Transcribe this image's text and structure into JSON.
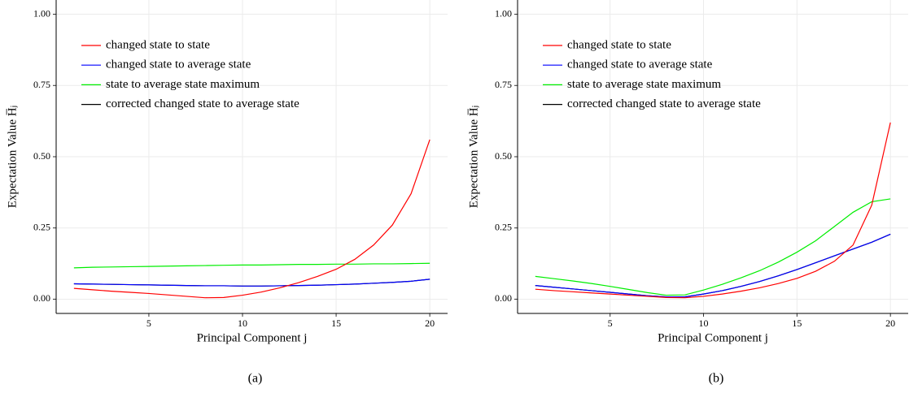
{
  "chart_data": [
    {
      "type": "line",
      "caption": "(a)",
      "xlabel": "Principal Component j",
      "ylabel": "Expectation Value H̅ⱼ",
      "x": [
        1,
        2,
        3,
        4,
        5,
        6,
        7,
        8,
        9,
        10,
        11,
        12,
        13,
        14,
        15,
        16,
        17,
        18,
        19,
        20
      ],
      "xlim": [
        0.05,
        20.95
      ],
      "xticks": [
        5,
        10,
        15,
        20
      ],
      "ylim": [
        -0.05,
        1.05
      ],
      "yticks": [
        {
          "value": 0,
          "label": "0.00"
        },
        {
          "value": 0.25,
          "label": "0.25"
        },
        {
          "value": 0.5,
          "label": "0.50"
        },
        {
          "value": 0.75,
          "label": "0.75"
        },
        {
          "value": 1,
          "label": "1.00"
        }
      ],
      "grid": true,
      "series": [
        {
          "name": "changed state to state",
          "color": "#ff0000",
          "values": [
            0.038,
            0.033,
            0.028,
            0.024,
            0.02,
            0.015,
            0.01,
            0.005,
            0.006,
            0.014,
            0.025,
            0.04,
            0.058,
            0.08,
            0.105,
            0.14,
            0.19,
            0.26,
            0.37,
            0.56
          ]
        },
        {
          "name": "changed state to average state",
          "color": "#0000ff",
          "values": [
            0.054,
            0.053,
            0.052,
            0.051,
            0.05,
            0.049,
            0.048,
            0.047,
            0.047,
            0.046,
            0.046,
            0.047,
            0.048,
            0.049,
            0.051,
            0.053,
            0.056,
            0.059,
            0.063,
            0.07
          ]
        },
        {
          "name": "state to average state maximum",
          "color": "#00ee00",
          "values": [
            0.11,
            0.112,
            0.113,
            0.114,
            0.115,
            0.116,
            0.117,
            0.118,
            0.119,
            0.12,
            0.12,
            0.121,
            0.122,
            0.122,
            0.123,
            0.123,
            0.124,
            0.124,
            0.125,
            0.126
          ]
        },
        {
          "name": "corrected changed state to average state",
          "color": "#000000",
          "values": [
            0.054,
            0.053,
            0.052,
            0.051,
            0.05,
            0.049,
            0.048,
            0.047,
            0.047,
            0.046,
            0.046,
            0.047,
            0.048,
            0.049,
            0.051,
            0.053,
            0.056,
            0.059,
            0.063,
            0.07
          ]
        }
      ]
    },
    {
      "type": "line",
      "caption": "(b)",
      "xlabel": "Principal Component j",
      "ylabel": "Expectation Value H̅ⱼ",
      "x": [
        1,
        2,
        3,
        4,
        5,
        6,
        7,
        8,
        9,
        10,
        11,
        12,
        13,
        14,
        15,
        16,
        17,
        18,
        19,
        20
      ],
      "xlim": [
        0.05,
        20.95
      ],
      "xticks": [
        5,
        10,
        15,
        20
      ],
      "ylim": [
        -0.05,
        1.05
      ],
      "yticks": [
        {
          "value": 0,
          "label": "0.00"
        },
        {
          "value": 0.25,
          "label": "0.25"
        },
        {
          "value": 0.5,
          "label": "0.50"
        },
        {
          "value": 0.75,
          "label": "0.75"
        },
        {
          "value": 1,
          "label": "1.00"
        }
      ],
      "grid": true,
      "series": [
        {
          "name": "changed state to state",
          "color": "#ff0000",
          "values": [
            0.035,
            0.03,
            0.026,
            0.022,
            0.018,
            0.014,
            0.01,
            0.006,
            0.005,
            0.01,
            0.018,
            0.028,
            0.04,
            0.055,
            0.073,
            0.098,
            0.133,
            0.19,
            0.33,
            0.62
          ]
        },
        {
          "name": "changed state to average state",
          "color": "#0000ff",
          "values": [
            0.048,
            0.042,
            0.036,
            0.03,
            0.024,
            0.018,
            0.012,
            0.008,
            0.008,
            0.018,
            0.03,
            0.045,
            0.062,
            0.082,
            0.104,
            0.128,
            0.152,
            0.176,
            0.2,
            0.228
          ]
        },
        {
          "name": "state to average state maximum",
          "color": "#00ee00",
          "values": [
            0.08,
            0.072,
            0.064,
            0.055,
            0.045,
            0.034,
            0.023,
            0.014,
            0.015,
            0.032,
            0.052,
            0.075,
            0.1,
            0.13,
            0.165,
            0.205,
            0.255,
            0.305,
            0.342,
            0.352
          ]
        },
        {
          "name": "corrected changed state to average state",
          "color": "#000000",
          "values": [
            0.048,
            0.042,
            0.036,
            0.03,
            0.024,
            0.018,
            0.012,
            0.008,
            0.008,
            0.018,
            0.03,
            0.045,
            0.062,
            0.082,
            0.104,
            0.128,
            0.152,
            0.176,
            0.2,
            0.228
          ]
        }
      ]
    }
  ]
}
